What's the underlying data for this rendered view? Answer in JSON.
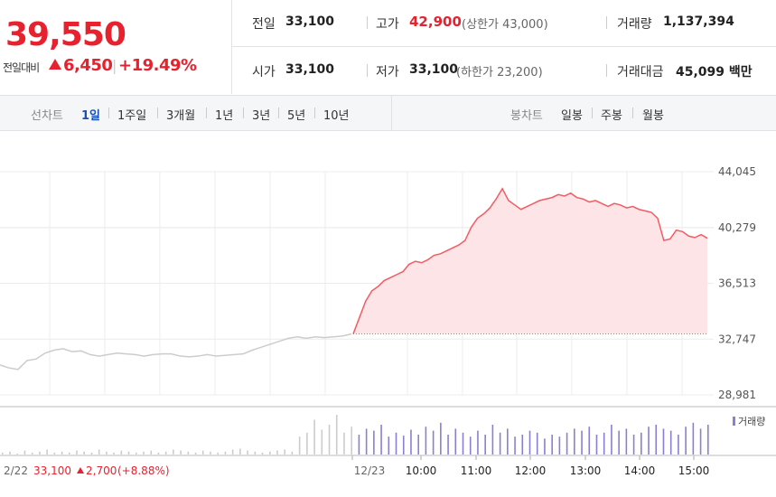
{
  "quote": {
    "price": "39,550",
    "change_label": "전일대비",
    "change_value": "6,450",
    "change_pct": "+19.49%",
    "up_color": "#e8212e"
  },
  "stats": {
    "prev_close_label": "전일",
    "prev_close": "33,100",
    "high_label": "고가",
    "high": "42,900",
    "upper_limit_note": "(상한가 43,000)",
    "volume_label": "거래량",
    "volume": "1,137,394",
    "open_label": "시가",
    "open": "33,100",
    "low_label": "저가",
    "low": "33,100",
    "lower_limit_note": "(하한가 23,200)",
    "trade_value_label": "거래대금",
    "trade_value": "45,099 백만"
  },
  "tabs": {
    "line_label": "선차트",
    "line_periods": [
      "1일",
      "1주일",
      "3개월",
      "1년",
      "3년",
      "5년",
      "10년"
    ],
    "active_period": "1일",
    "candle_label": "봉차트",
    "candle_periods": [
      "일봉",
      "주봉",
      "월봉"
    ]
  },
  "footer": {
    "prev_date": "2/22",
    "prev_price": "33,100",
    "prev_change": "2,700",
    "prev_pct": "(+8.88%)"
  },
  "chart_data": {
    "type": "line",
    "y_ticks": [
      "44,045",
      "40,279",
      "36,513",
      "32,747",
      "28,981"
    ],
    "ylim": [
      28981,
      44045
    ],
    "baseline": 33100,
    "x_ticks": [
      "12/23",
      "10:00",
      "11:00",
      "12:00",
      "13:00",
      "14:00",
      "15:00"
    ],
    "volume_legend": "거래량",
    "colors": {
      "prev_line": "#cccccc",
      "today_line": "#f25c64",
      "today_fill": "#fde4e6",
      "volume": "#8b7fd0",
      "prev_volume": "#cccccc"
    },
    "series": [
      {
        "x": [
          "2/22 09:00",
          "09:10",
          "09:20",
          "09:30",
          "09:40",
          "09:50",
          "10:00",
          "10:10",
          "10:20",
          "10:30",
          "10:40",
          "10:50",
          "11:00",
          "11:10",
          "11:20",
          "11:30",
          "11:40",
          "11:50",
          "12:00",
          "12:10",
          "12:20",
          "12:30",
          "12:40",
          "12:50",
          "13:00",
          "13:10",
          "13:20",
          "13:30",
          "13:40",
          "13:50",
          "14:00",
          "14:10",
          "14:20",
          "14:30",
          "14:40",
          "14:50",
          "15:00",
          "15:10",
          "15:20",
          "15:30"
        ],
        "values": [
          31000,
          30800,
          30700,
          31300,
          31400,
          31800,
          32000,
          32100,
          31900,
          31950,
          31700,
          31600,
          31700,
          31800,
          31750,
          31700,
          31600,
          31700,
          31750,
          31750,
          31600,
          31550,
          31600,
          31700,
          31600,
          31650,
          31700,
          31750,
          32000,
          32200,
          32400,
          32600,
          32800,
          32900,
          32800,
          32900,
          32850,
          32900,
          32950,
          33100
        ]
      },
      {
        "x": [
          "12/23 09:00",
          "09:05",
          "09:10",
          "09:15",
          "09:20",
          "09:25",
          "09:30",
          "09:35",
          "09:40",
          "09:45",
          "09:50",
          "09:55",
          "10:00",
          "10:05",
          "10:10",
          "10:15",
          "10:20",
          "10:25",
          "10:30",
          "10:35",
          "10:40",
          "10:45",
          "10:50",
          "10:55",
          "11:00",
          "11:05",
          "11:10",
          "11:15",
          "11:20",
          "11:25",
          "11:30",
          "11:40",
          "11:50",
          "12:00",
          "12:10",
          "12:20",
          "12:30",
          "12:40",
          "12:50",
          "13:00",
          "13:10",
          "13:20",
          "13:30",
          "13:40",
          "13:50",
          "14:00",
          "14:10",
          "14:20",
          "14:30",
          "14:40",
          "14:50",
          "15:00",
          "15:05",
          "15:10",
          "15:15",
          "15:20",
          "15:25",
          "15:30"
        ],
        "values": [
          33100,
          34200,
          35300,
          36000,
          36300,
          36700,
          36900,
          37100,
          37300,
          37800,
          38000,
          37900,
          38100,
          38400,
          38500,
          38700,
          38900,
          39100,
          39400,
          40300,
          40900,
          41200,
          41600,
          42200,
          42900,
          42100,
          41800,
          41500,
          41700,
          41900,
          42100,
          42200,
          42300,
          42500,
          42400,
          42600,
          42300,
          42200,
          42000,
          42100,
          41900,
          41700,
          41900,
          41800,
          41600,
          41700,
          41500,
          41400,
          41300,
          40900,
          39400,
          39500,
          40100,
          40000,
          39700,
          39600,
          39800,
          39550
        ]
      }
    ],
    "volume": [
      2,
      3,
      1,
      4,
      2,
      3,
      5,
      2,
      3,
      2,
      4,
      3,
      2,
      5,
      3,
      2,
      4,
      3,
      2,
      3,
      4,
      2,
      3,
      5,
      4,
      3,
      2,
      4,
      3,
      2,
      3,
      5,
      6,
      4,
      3,
      2,
      3,
      4,
      5,
      3,
      18,
      22,
      35,
      25,
      30,
      40,
      22,
      28,
      20,
      26,
      24,
      30,
      18,
      22,
      19,
      25,
      20,
      28,
      24,
      32,
      20,
      26,
      22,
      18,
      24,
      20,
      30,
      22,
      26,
      18,
      20,
      24,
      22,
      16,
      20,
      18,
      22,
      26,
      24,
      28,
      20,
      22,
      30,
      24,
      26,
      20,
      22,
      28,
      30,
      26,
      24,
      20,
      28,
      32,
      26,
      30
    ]
  }
}
